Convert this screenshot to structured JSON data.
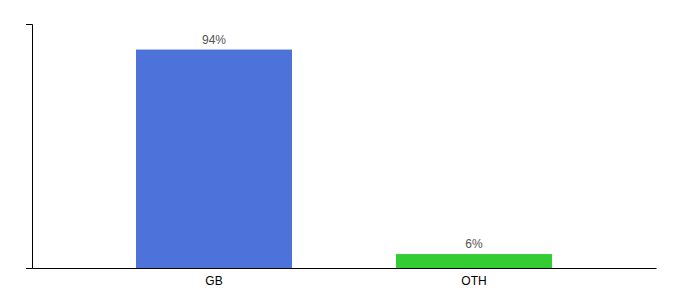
{
  "chart_data": {
    "type": "bar",
    "categories": [
      "GB",
      "OTH"
    ],
    "values": [
      94,
      6
    ],
    "value_labels": [
      "94%",
      "6%"
    ],
    "colors": [
      "#4d72d9",
      "#33cc33"
    ],
    "ylim": [
      0,
      105
    ],
    "yticks": [],
    "tick_labels": "x",
    "data_labels": true
  }
}
